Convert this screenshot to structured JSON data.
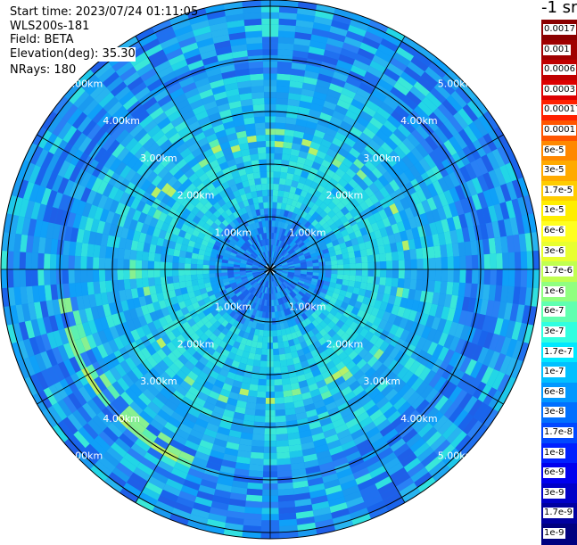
{
  "info": {
    "start_time": "Start time: 2023/07/24 01:11:05",
    "instrument": "WLS200s-181",
    "field": "Field: BETA",
    "elevation": "Elevation(deg): 35.30",
    "nrays": "NRays: 180"
  },
  "colorbar": {
    "unit": "-1 sr",
    "labels": [
      "0.0017",
      "0.001",
      "0.0006",
      "0.0003",
      "0.00017",
      "0.0001",
      "6e-5",
      "3e-5",
      "1.7e-5",
      "1e-5",
      "6e-6",
      "3e-6",
      "1.7e-6",
      "1e-6",
      "6e-7",
      "3e-7",
      "1.7e-7",
      "1e-7",
      "6e-8",
      "3e-8",
      "1.7e-8",
      "1e-8",
      "6e-9",
      "3e-9",
      "1.7e-9",
      "1e-9"
    ],
    "colors": [
      "#8b0000",
      "#a00000",
      "#c00000",
      "#dd0000",
      "#ff2000",
      "#ff5500",
      "#ff8800",
      "#ffaa00",
      "#ffcc00",
      "#ffee00",
      "#ffff20",
      "#e8ff30",
      "#c0ff50",
      "#90ff80",
      "#60ffb0",
      "#30ffe0",
      "#00e8ff",
      "#00c0ff",
      "#0098ff",
      "#0070ff",
      "#0048ff",
      "#0020ff",
      "#0000ee",
      "#0000c8",
      "#0000a0",
      "#000080"
    ]
  },
  "ring_labels": [
    "1.00km",
    "2.00km",
    "3.00km",
    "4.00km",
    "5.00km"
  ]
}
